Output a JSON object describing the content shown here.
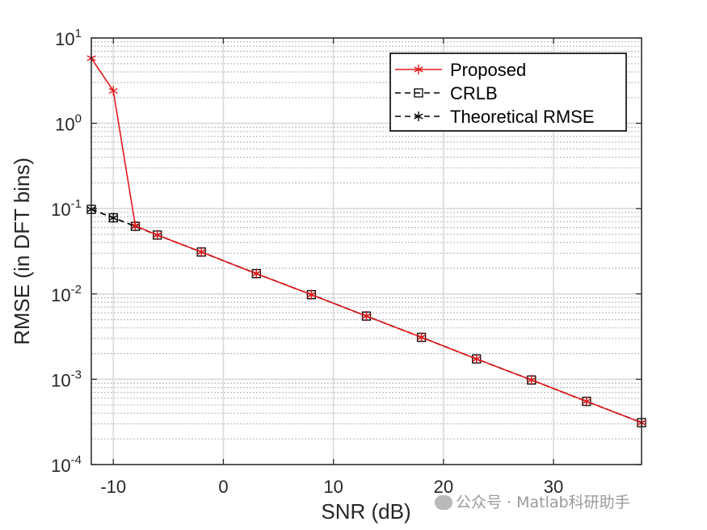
{
  "chart_data": {
    "type": "line",
    "xlabel": "SNR (dB)",
    "ylabel": "RMSE (in DFT bins)",
    "xlim": [
      -12,
      38
    ],
    "ylim": [
      0.0001,
      10
    ],
    "yscale": "log",
    "grid": true,
    "minor_grid": true,
    "legend_position": "top-right",
    "x_ticks": [
      -10,
      0,
      10,
      20,
      30
    ],
    "x_tick_labels": [
      "-10",
      "0",
      "10",
      "20",
      "30"
    ],
    "y_ticks": [
      0.0001,
      0.001,
      0.01,
      0.1,
      1,
      10
    ],
    "y_tick_labels": [
      {
        "base": "10",
        "exp": "-4"
      },
      {
        "base": "10",
        "exp": "-3"
      },
      {
        "base": "10",
        "exp": "-2"
      },
      {
        "base": "10",
        "exp": "-1"
      },
      {
        "base": "10",
        "exp": "0"
      },
      {
        "base": "10",
        "exp": "1"
      }
    ],
    "series": [
      {
        "name": "Proposed",
        "color": "#e41a1c",
        "line": "solid",
        "marker": "asterisk",
        "x": [
          -12,
          -10,
          -8,
          -6,
          -2,
          3,
          8,
          13,
          18,
          23,
          28,
          33,
          38
        ],
        "y": [
          5.8,
          2.4,
          0.063,
          0.049,
          0.031,
          0.0173,
          0.0098,
          0.0055,
          0.0031,
          0.00173,
          0.00098,
          0.00055,
          0.00031
        ]
      },
      {
        "name": "CRLB",
        "color": "#000000",
        "line": "dashed",
        "marker": "square",
        "x": [
          -12,
          -10,
          -8,
          -6,
          -2,
          3,
          8,
          13,
          18,
          23,
          28,
          33,
          38
        ],
        "y": [
          0.098,
          0.078,
          0.062,
          0.049,
          0.031,
          0.0173,
          0.0098,
          0.0055,
          0.0031,
          0.00173,
          0.00098,
          0.00055,
          0.00031
        ]
      },
      {
        "name": "Theoretical RMSE",
        "color": "#000000",
        "line": "dashed",
        "marker": "asterisk",
        "x": [
          -12,
          -10,
          -8,
          -6,
          -2,
          3,
          8,
          13,
          18,
          23,
          28,
          33,
          38
        ],
        "y": [
          0.098,
          0.078,
          0.062,
          0.049,
          0.031,
          0.0173,
          0.0098,
          0.0055,
          0.0031,
          0.00173,
          0.00098,
          0.00055,
          0.00031
        ]
      }
    ]
  },
  "watermark": {
    "icon": "wechat-icon",
    "text": "公众号 · Matlab科研助手"
  }
}
